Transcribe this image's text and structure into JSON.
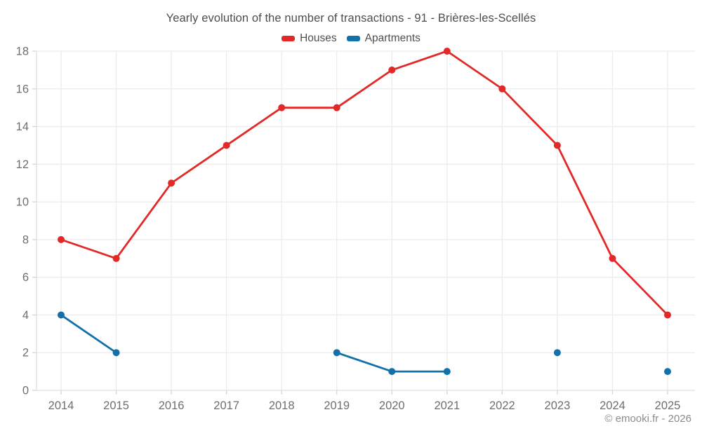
{
  "chart_data": {
    "type": "line",
    "title": "Yearly evolution of the number of transactions - 91 - Brières-les-Scellés",
    "categories": [
      "2014",
      "2015",
      "2016",
      "2017",
      "2018",
      "2019",
      "2020",
      "2021",
      "2022",
      "2023",
      "2024",
      "2025"
    ],
    "series": [
      {
        "name": "Houses",
        "color": "#e32828",
        "values": [
          8,
          7,
          11,
          13,
          15,
          15,
          17,
          18,
          16,
          13,
          7,
          4
        ]
      },
      {
        "name": "Apartments",
        "color": "#1271ab",
        "values": [
          4,
          2,
          null,
          null,
          null,
          2,
          1,
          1,
          null,
          2,
          null,
          1
        ]
      }
    ],
    "xlabel": "",
    "ylabel": "",
    "ylim": [
      0,
      18
    ],
    "ytick_step": 2,
    "grid": true,
    "legend_position": "top"
  },
  "footer": {
    "credit": "© emooki.fr - 2026"
  },
  "colors": {
    "grid_line": "#ececec",
    "axis_line": "#dfdfdf",
    "tick_mark": "#d6d6d6",
    "tick_label": "#6e6e6e",
    "title_text": "#4d4d4d",
    "footer_text": "#8c8c8c"
  }
}
